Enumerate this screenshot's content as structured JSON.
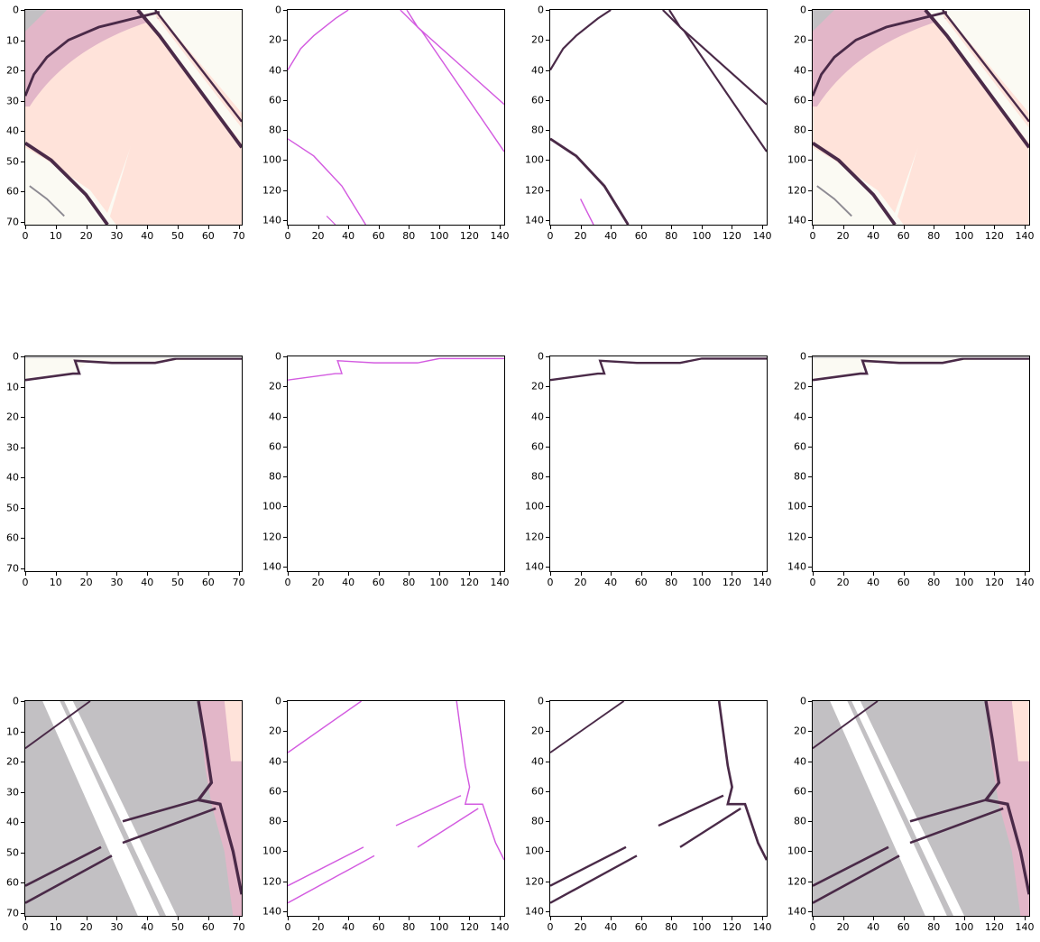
{
  "axes": {
    "small": {
      "ticks": [
        "0",
        "10",
        "20",
        "30",
        "40",
        "50",
        "60",
        "70"
      ],
      "max": 71
    },
    "large": {
      "ticks": [
        "0",
        "20",
        "40",
        "60",
        "80",
        "100",
        "120",
        "140"
      ],
      "max": 143
    }
  },
  "grid": [
    [
      {
        "axis": "small",
        "kind": "color_a"
      },
      {
        "axis": "large",
        "kind": "edge_pink_a"
      },
      {
        "axis": "large",
        "kind": "edge_dark_a"
      },
      {
        "axis": "large",
        "kind": "color_a_big"
      }
    ],
    [
      {
        "axis": "small",
        "kind": "top_white"
      },
      {
        "axis": "large",
        "kind": "top_pink"
      },
      {
        "axis": "large",
        "kind": "top_dark"
      },
      {
        "axis": "large",
        "kind": "top_white_big"
      }
    ],
    [
      {
        "axis": "small",
        "kind": "gray_a"
      },
      {
        "axis": "large",
        "kind": "gray_pink"
      },
      {
        "axis": "large",
        "kind": "gray_dark"
      },
      {
        "axis": "large",
        "kind": "gray_a_big"
      }
    ]
  ],
  "colors": {
    "pink": "#e2b6c8",
    "peach": "#ffe3da",
    "cream": "#fbfaf3",
    "gray": "#c2c0c3",
    "outline": "#4a2a48",
    "thin_line": "#d35be0",
    "white": "#ffffff"
  }
}
